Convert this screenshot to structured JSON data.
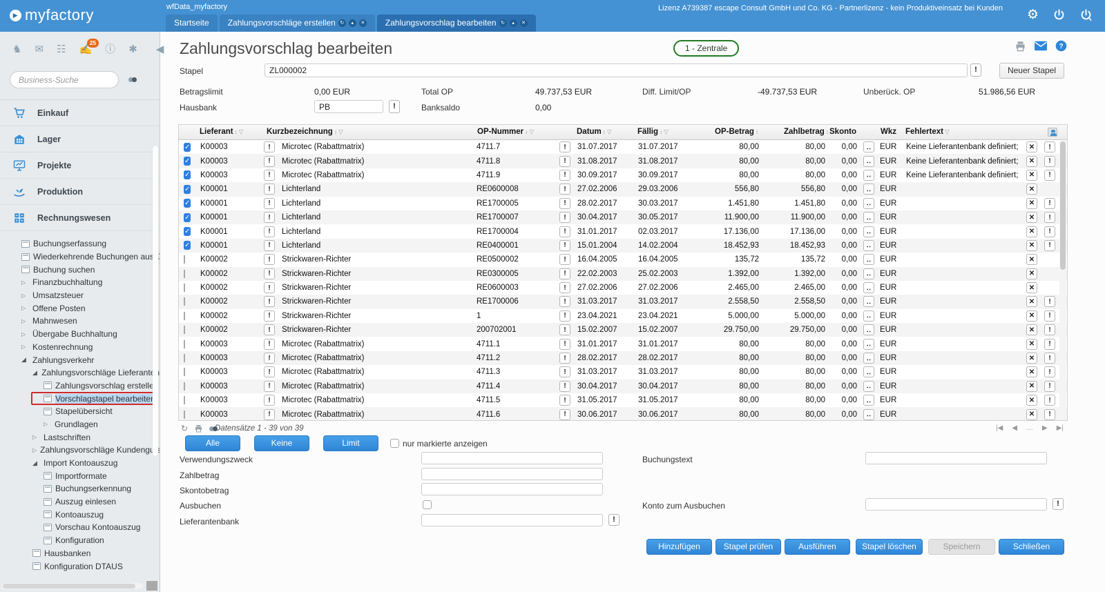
{
  "topbar": {
    "logo": "myfactory",
    "workspace": "wfData_myfactory",
    "license": "Lizenz A739387 escape Consult GmbH und Co. KG - Partnerlizenz - kein Produktiveinsatz bei Kunden",
    "tabs": [
      {
        "label": "Startseite",
        "active": false,
        "controls": false
      },
      {
        "label": "Zahlungsvorschläge erstellen",
        "active": false,
        "controls": true
      },
      {
        "label": "Zahlungsvorschlag bearbeiten",
        "active": true,
        "controls": true
      }
    ]
  },
  "sidebar": {
    "search_placeholder": "Business-Suche",
    "badge_count": "25",
    "modules": [
      {
        "label": "Einkauf",
        "icon": "cart-icon"
      },
      {
        "label": "Lager",
        "icon": "warehouse-icon"
      },
      {
        "label": "Projekte",
        "icon": "projects-icon"
      },
      {
        "label": "Produktion",
        "icon": "production-icon"
      },
      {
        "label": "Rechnungswesen",
        "icon": "accounting-icon"
      }
    ],
    "tree": [
      {
        "label": "Buchungserfassung",
        "depth": 0,
        "icon": "doc"
      },
      {
        "label": "Wiederkehrende Buchungen ausfüh",
        "depth": 0,
        "icon": "doc"
      },
      {
        "label": "Buchung suchen",
        "depth": 0,
        "icon": "doc"
      },
      {
        "label": "Finanzbuchhaltung",
        "depth": 0,
        "icon": "collapsed"
      },
      {
        "label": "Umsatzsteuer",
        "depth": 0,
        "icon": "collapsed"
      },
      {
        "label": "Offene Posten",
        "depth": 0,
        "icon": "collapsed"
      },
      {
        "label": "Mahnwesen",
        "depth": 0,
        "icon": "collapsed"
      },
      {
        "label": "Übergabe Buchhaltung",
        "depth": 0,
        "icon": "collapsed"
      },
      {
        "label": "Kostenrechnung",
        "depth": 0,
        "icon": "collapsed"
      },
      {
        "label": "Zahlungsverkehr",
        "depth": 0,
        "icon": "expanded"
      },
      {
        "label": "Zahlungsvorschläge Lieferanten",
        "depth": 1,
        "icon": "expanded"
      },
      {
        "label": "Zahlungsvorschlag erstellen",
        "depth": 2,
        "icon": "doc"
      },
      {
        "label": "Vorschlagstapel bearbeiten",
        "depth": 2,
        "icon": "doc",
        "selected": true
      },
      {
        "label": "Stapelübersicht",
        "depth": 2,
        "icon": "doc"
      },
      {
        "label": "Grundlagen",
        "depth": 2,
        "icon": "collapsed"
      },
      {
        "label": "Lastschriften",
        "depth": 1,
        "icon": "collapsed"
      },
      {
        "label": "Zahlungsvorschläge Kundenguts",
        "depth": 1,
        "icon": "collapsed"
      },
      {
        "label": "Import Kontoauszug",
        "depth": 1,
        "icon": "expanded"
      },
      {
        "label": "Importformate",
        "depth": 2,
        "icon": "doc"
      },
      {
        "label": "Buchungserkennung",
        "depth": 2,
        "icon": "doc"
      },
      {
        "label": "Auszug einlesen",
        "depth": 2,
        "icon": "doc"
      },
      {
        "label": "Kontoauszug",
        "depth": 2,
        "icon": "doc"
      },
      {
        "label": "Vorschau Kontoauszug",
        "depth": 2,
        "icon": "doc"
      },
      {
        "label": "Konfiguration",
        "depth": 2,
        "icon": "doc"
      },
      {
        "label": "Hausbanken",
        "depth": 1,
        "icon": "doc"
      },
      {
        "label": "Konfiguration DTAUS",
        "depth": 1,
        "icon": "doc"
      }
    ]
  },
  "page": {
    "title": "Zahlungsvorschlag bearbeiten",
    "site_badge": "1 - Zentrale",
    "stapel_label": "Stapel",
    "stapel_value": "ZL000002",
    "new_batch_label": "Neuer Stapel",
    "summary": [
      {
        "label": "Betragslimit",
        "value": "0,00 EUR"
      },
      {
        "label": "Total OP",
        "value": "49.737,53 EUR"
      },
      {
        "label": "Diff. Limit/OP",
        "value": "-49.737,53 EUR"
      },
      {
        "label": "Unberück. OP",
        "value": "51.986,56 EUR"
      }
    ],
    "hausbank_label": "Hausbank",
    "hausbank_value": "PB",
    "banksaldo_label": "Banksaldo",
    "banksaldo_value": "0,00"
  },
  "grid": {
    "columns": [
      {
        "label": "Lieferant",
        "sort": true,
        "filter": true
      },
      {
        "label": "Kurzbezeichnung",
        "sort": true,
        "filter": true
      },
      {
        "label": "OP-Nummer",
        "sort": true,
        "filter": true
      },
      {
        "label": "Datum",
        "sort": true,
        "filter": true
      },
      {
        "label": "Fällig",
        "sort": true,
        "filter": true
      },
      {
        "label": "OP-Betrag",
        "sort": true,
        "filter": false
      },
      {
        "label": "Zahlbetrag",
        "sort": true,
        "filter": false
      },
      {
        "label": "Skonto",
        "sort": false,
        "filter": false
      },
      {
        "label": "Wkz",
        "sort": false,
        "filter": false
      },
      {
        "label": "Fehlertext",
        "sort": false,
        "filter": true
      }
    ],
    "rows": [
      {
        "checked": true,
        "lieferant": "K00003",
        "kurz": "Microtec (Rabattmatrix)",
        "op": "4711.7",
        "datum": "31.07.2017",
        "faellig": "31.07.2017",
        "op_betrag": "80,00",
        "zahlbetrag": "80,00",
        "skonto": "0,00",
        "wkz": "EUR",
        "fehler": "Keine Lieferantenbank definiert;",
        "warn": true
      },
      {
        "checked": true,
        "lieferant": "K00003",
        "kurz": "Microtec (Rabattmatrix)",
        "op": "4711.8",
        "datum": "31.08.2017",
        "faellig": "31.08.2017",
        "op_betrag": "80,00",
        "zahlbetrag": "80,00",
        "skonto": "0,00",
        "wkz": "EUR",
        "fehler": "Keine Lieferantenbank definiert;",
        "warn": true
      },
      {
        "checked": true,
        "lieferant": "K00003",
        "kurz": "Microtec (Rabattmatrix)",
        "op": "4711.9",
        "datum": "30.09.2017",
        "faellig": "30.09.2017",
        "op_betrag": "80,00",
        "zahlbetrag": "80,00",
        "skonto": "0,00",
        "wkz": "EUR",
        "fehler": "Keine Lieferantenbank definiert;",
        "warn": true
      },
      {
        "checked": true,
        "lieferant": "K00001",
        "kurz": "Lichterland",
        "op": "RE0600008",
        "datum": "27.02.2006",
        "faellig": "29.03.2006",
        "op_betrag": "556,80",
        "zahlbetrag": "556,80",
        "skonto": "0,00",
        "wkz": "EUR",
        "fehler": "",
        "warn": false
      },
      {
        "checked": true,
        "lieferant": "K00001",
        "kurz": "Lichterland",
        "op": "RE1700005",
        "datum": "28.02.2017",
        "faellig": "30.03.2017",
        "op_betrag": "1.451,80",
        "zahlbetrag": "1.451,80",
        "skonto": "0,00",
        "wkz": "EUR",
        "fehler": "",
        "warn": true
      },
      {
        "checked": true,
        "lieferant": "K00001",
        "kurz": "Lichterland",
        "op": "RE1700007",
        "datum": "30.04.2017",
        "faellig": "30.05.2017",
        "op_betrag": "11.900,00",
        "zahlbetrag": "11.900,00",
        "skonto": "0,00",
        "wkz": "EUR",
        "fehler": "",
        "warn": true
      },
      {
        "checked": true,
        "lieferant": "K00001",
        "kurz": "Lichterland",
        "op": "RE1700004",
        "datum": "31.01.2017",
        "faellig": "02.03.2017",
        "op_betrag": "17.136,00",
        "zahlbetrag": "17.136,00",
        "skonto": "0,00",
        "wkz": "EUR",
        "fehler": "",
        "warn": true
      },
      {
        "checked": true,
        "lieferant": "K00001",
        "kurz": "Lichterland",
        "op": "RE0400001",
        "datum": "15.01.2004",
        "faellig": "14.02.2004",
        "op_betrag": "18.452,93",
        "zahlbetrag": "18.452,93",
        "skonto": "0,00",
        "wkz": "EUR",
        "fehler": "",
        "warn": true
      },
      {
        "checked": false,
        "lieferant": "K00002",
        "kurz": "Strickwaren-Richter",
        "op": "RE0500002",
        "datum": "16.04.2005",
        "faellig": "16.04.2005",
        "op_betrag": "135,72",
        "zahlbetrag": "135,72",
        "skonto": "0,00",
        "wkz": "EUR",
        "fehler": "",
        "warn": false
      },
      {
        "checked": false,
        "lieferant": "K00002",
        "kurz": "Strickwaren-Richter",
        "op": "RE0300005",
        "datum": "22.02.2003",
        "faellig": "25.02.2003",
        "op_betrag": "1.392,00",
        "zahlbetrag": "1.392,00",
        "skonto": "0,00",
        "wkz": "EUR",
        "fehler": "",
        "warn": false
      },
      {
        "checked": false,
        "lieferant": "K00002",
        "kurz": "Strickwaren-Richter",
        "op": "RE0600003",
        "datum": "27.02.2006",
        "faellig": "27.02.2006",
        "op_betrag": "2.465,00",
        "zahlbetrag": "2.465,00",
        "skonto": "0,00",
        "wkz": "EUR",
        "fehler": "",
        "warn": false
      },
      {
        "checked": false,
        "lieferant": "K00002",
        "kurz": "Strickwaren-Richter",
        "op": "RE1700006",
        "datum": "31.03.2017",
        "faellig": "31.03.2017",
        "op_betrag": "2.558,50",
        "zahlbetrag": "2.558,50",
        "skonto": "0,00",
        "wkz": "EUR",
        "fehler": "",
        "warn": true
      },
      {
        "checked": false,
        "lieferant": "K00002",
        "kurz": "Strickwaren-Richter",
        "op": "1",
        "datum": "23.04.2021",
        "faellig": "23.04.2021",
        "op_betrag": "5.000,00",
        "zahlbetrag": "5.000,00",
        "skonto": "0,00",
        "wkz": "EUR",
        "fehler": "",
        "warn": true
      },
      {
        "checked": false,
        "lieferant": "K00002",
        "kurz": "Strickwaren-Richter",
        "op": "200702001",
        "datum": "15.02.2007",
        "faellig": "15.02.2007",
        "op_betrag": "29.750,00",
        "zahlbetrag": "29.750,00",
        "skonto": "0,00",
        "wkz": "EUR",
        "fehler": "",
        "warn": true
      },
      {
        "checked": false,
        "lieferant": "K00003",
        "kurz": "Microtec (Rabattmatrix)",
        "op": "4711.1",
        "datum": "31.01.2017",
        "faellig": "31.01.2017",
        "op_betrag": "80,00",
        "zahlbetrag": "80,00",
        "skonto": "0,00",
        "wkz": "EUR",
        "fehler": "",
        "warn": true
      },
      {
        "checked": false,
        "lieferant": "K00003",
        "kurz": "Microtec (Rabattmatrix)",
        "op": "4711.2",
        "datum": "28.02.2017",
        "faellig": "28.02.2017",
        "op_betrag": "80,00",
        "zahlbetrag": "80,00",
        "skonto": "0,00",
        "wkz": "EUR",
        "fehler": "",
        "warn": true
      },
      {
        "checked": false,
        "lieferant": "K00003",
        "kurz": "Microtec (Rabattmatrix)",
        "op": "4711.3",
        "datum": "31.03.2017",
        "faellig": "31.03.2017",
        "op_betrag": "80,00",
        "zahlbetrag": "80,00",
        "skonto": "0,00",
        "wkz": "EUR",
        "fehler": "",
        "warn": true
      },
      {
        "checked": false,
        "lieferant": "K00003",
        "kurz": "Microtec (Rabattmatrix)",
        "op": "4711.4",
        "datum": "30.04.2017",
        "faellig": "30.04.2017",
        "op_betrag": "80,00",
        "zahlbetrag": "80,00",
        "skonto": "0,00",
        "wkz": "EUR",
        "fehler": "",
        "warn": true
      },
      {
        "checked": false,
        "lieferant": "K00003",
        "kurz": "Microtec (Rabattmatrix)",
        "op": "4711.5",
        "datum": "31.05.2017",
        "faellig": "31.05.2017",
        "op_betrag": "80,00",
        "zahlbetrag": "80,00",
        "skonto": "0,00",
        "wkz": "EUR",
        "fehler": "",
        "warn": true
      },
      {
        "checked": false,
        "lieferant": "K00003",
        "kurz": "Microtec (Rabattmatrix)",
        "op": "4711.6",
        "datum": "30.06.2017",
        "faellig": "30.06.2017",
        "op_betrag": "80,00",
        "zahlbetrag": "80,00",
        "skonto": "0,00",
        "wkz": "EUR",
        "fehler": "",
        "warn": true
      }
    ],
    "footer": {
      "records": "Datensätze 1 - 39 von 39"
    }
  },
  "actions": {
    "all": "Alle",
    "none": "Keine",
    "limit": "Limit",
    "only_marked": "nur markierte anzeigen"
  },
  "form": {
    "verwendungszweck": "Verwendungszweck",
    "zahlbetrag": "Zahlbetrag",
    "skontobetrag": "Skontobetrag",
    "ausbuchen": "Ausbuchen",
    "lieferantenbank": "Lieferantenbank",
    "buchungstext": "Buchungstext",
    "konto_zum_ausbuchen": "Konto zum Ausbuchen"
  },
  "buttons": [
    "Hinzufügen",
    "Stapel prüfen",
    "Ausführen",
    "Stapel löschen",
    "Speichern",
    "Schließen"
  ],
  "colors": {
    "accent_blue": "#3289db",
    "header_blue": "#4492d3",
    "active_tab": "#2b6fb0",
    "badge_orange": "#e8681c",
    "site_green": "#237a23",
    "annotation_red": "#cf2b2b"
  }
}
